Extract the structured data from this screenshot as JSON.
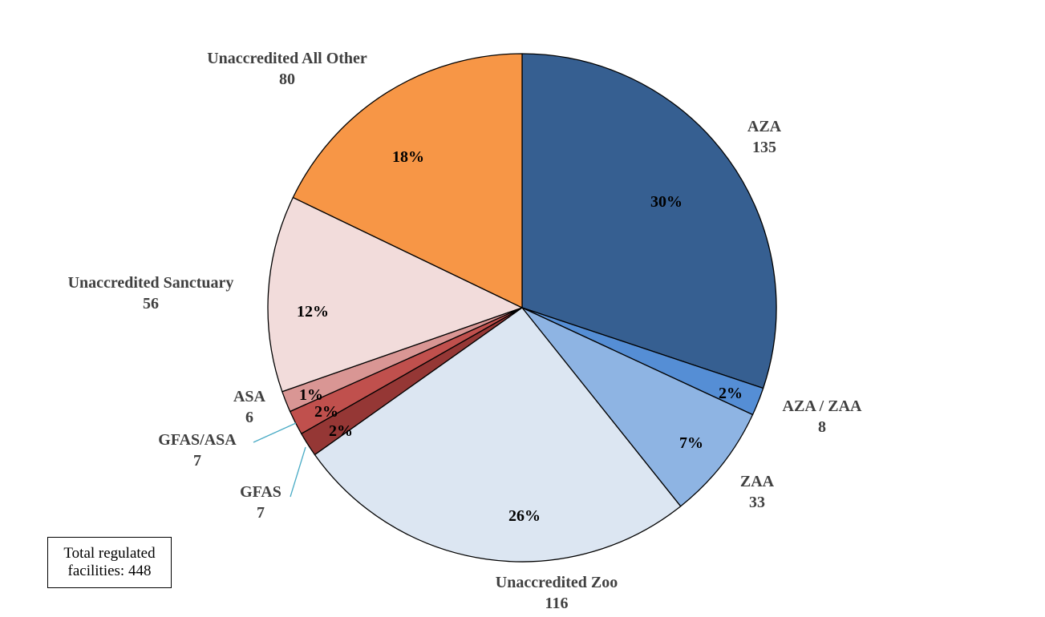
{
  "chart_data": {
    "type": "pie",
    "slices": [
      {
        "name": "AZA",
        "value": 135,
        "pct_label": "30%",
        "color": "#365F91"
      },
      {
        "name": "AZA / ZAA",
        "value": 8,
        "pct_label": "2%",
        "color": "#558ED5"
      },
      {
        "name": "ZAA",
        "value": 33,
        "pct_label": "7%",
        "color": "#8EB4E3"
      },
      {
        "name": "Unaccredited Zoo",
        "value": 116,
        "pct_label": "26%",
        "color": "#DCE6F2"
      },
      {
        "name": "GFAS",
        "value": 7,
        "pct_label": "2%",
        "color": "#953735"
      },
      {
        "name": "GFAS/ASA",
        "value": 7,
        "pct_label": "2%",
        "color": "#C0504D"
      },
      {
        "name": "ASA",
        "value": 6,
        "pct_label": "1%",
        "color": "#D99694"
      },
      {
        "name": "Unaccredited Sanctuary",
        "value": 56,
        "pct_label": "12%",
        "color": "#F2DCDB"
      },
      {
        "name": "Unaccredited All Other",
        "value": 80,
        "pct_label": "18%",
        "color": "#F79646"
      }
    ],
    "leader_line_color": "#4BACC6"
  },
  "total_box": {
    "line1": "Total regulated",
    "line2": "facilities: 448"
  }
}
